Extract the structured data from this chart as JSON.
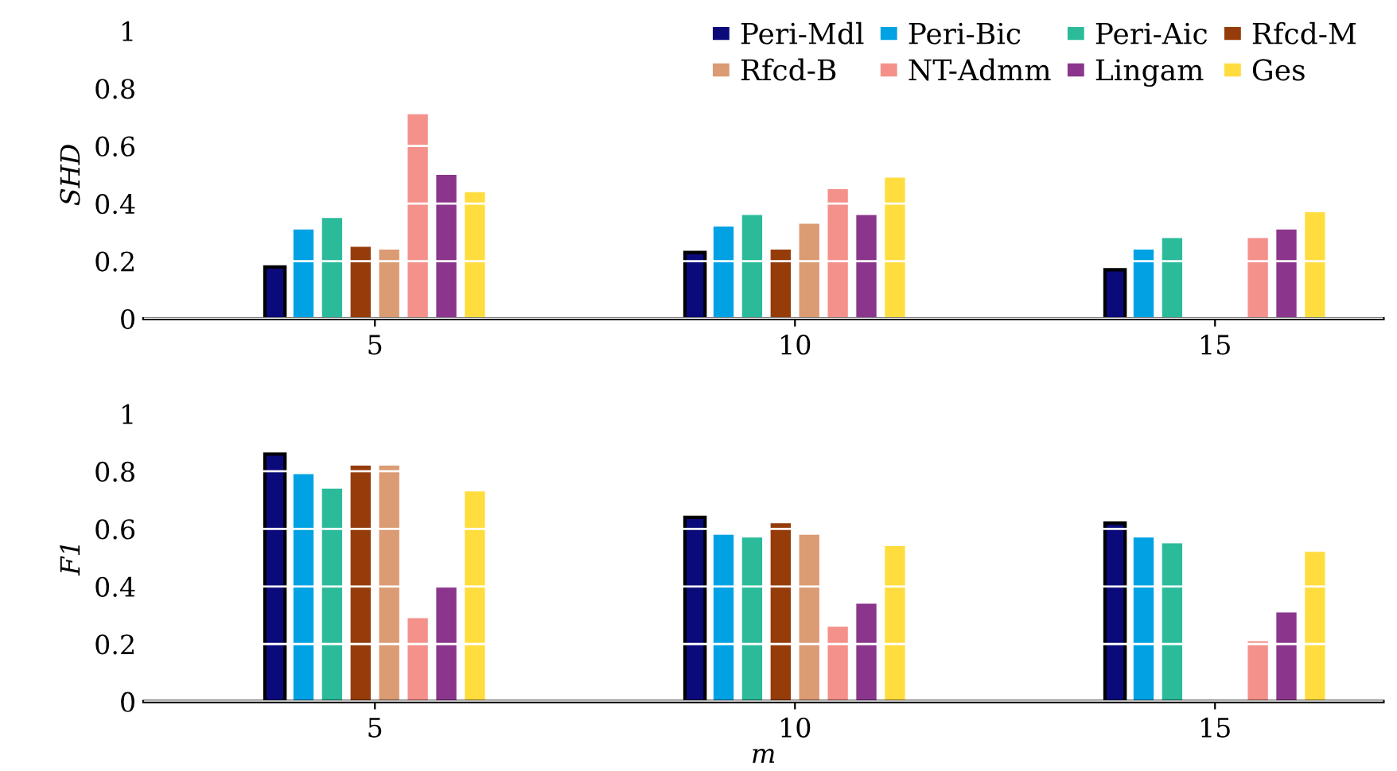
{
  "chart_data": [
    {
      "type": "bar",
      "ylabel": "SHD",
      "categories": [
        "5",
        "10",
        "15"
      ],
      "ylim": [
        0,
        1
      ],
      "yticks": [
        0,
        0.2,
        0.4,
        0.6,
        0.8,
        1
      ],
      "grid": "y",
      "legend": "top right",
      "tick_labels": "xy",
      "series": [
        {
          "name": "Peri-Mdl",
          "color": "#0a0a7a",
          "values": [
            0.18,
            0.23,
            0.17
          ]
        },
        {
          "name": "Peri-Bic",
          "color": "#00a2e3",
          "values": [
            0.31,
            0.32,
            0.24
          ]
        },
        {
          "name": "Peri-Aic",
          "color": "#2bbb9a",
          "values": [
            0.35,
            0.36,
            0.28
          ]
        },
        {
          "name": "Rfcd-M",
          "color": "#953c0a",
          "values": [
            0.25,
            0.24,
            null
          ]
        },
        {
          "name": "Rfcd-B",
          "color": "#db9b73",
          "values": [
            0.24,
            0.33,
            null
          ]
        },
        {
          "name": "NT-Admm",
          "color": "#f4918a",
          "values": [
            0.71,
            0.45,
            0.28
          ]
        },
        {
          "name": "Lingam",
          "color": "#8b368c",
          "values": [
            0.5,
            0.36,
            0.31
          ]
        },
        {
          "name": "Ges",
          "color": "#ffdd3f",
          "values": [
            0.44,
            0.49,
            0.37
          ]
        }
      ]
    },
    {
      "type": "bar",
      "ylabel": "F1",
      "xlabel": "m",
      "categories": [
        "5",
        "10",
        "15"
      ],
      "ylim": [
        0,
        1
      ],
      "yticks": [
        0,
        0.2,
        0.4,
        0.6,
        0.8,
        1
      ],
      "grid": "y",
      "series": [
        {
          "color": "#0a0a7a",
          "values": [
            0.86,
            0.64,
            0.62
          ]
        },
        {
          "color": "#00a2e3",
          "values": [
            0.79,
            0.58,
            0.57
          ]
        },
        {
          "color": "#2bbb9a",
          "values": [
            0.74,
            0.57,
            0.55
          ]
        },
        {
          "color": "#953c0a",
          "values": [
            0.82,
            0.62,
            null
          ]
        },
        {
          "color": "#db9b73",
          "values": [
            0.82,
            0.58,
            null
          ]
        },
        {
          "color": "#f4918a",
          "values": [
            0.29,
            0.26,
            0.21
          ]
        },
        {
          "color": "#8b368c",
          "values": [
            0.4,
            0.34,
            0.31
          ]
        },
        {
          "color": "#ffdd3f",
          "values": [
            0.73,
            0.54,
            0.52
          ]
        }
      ]
    }
  ]
}
